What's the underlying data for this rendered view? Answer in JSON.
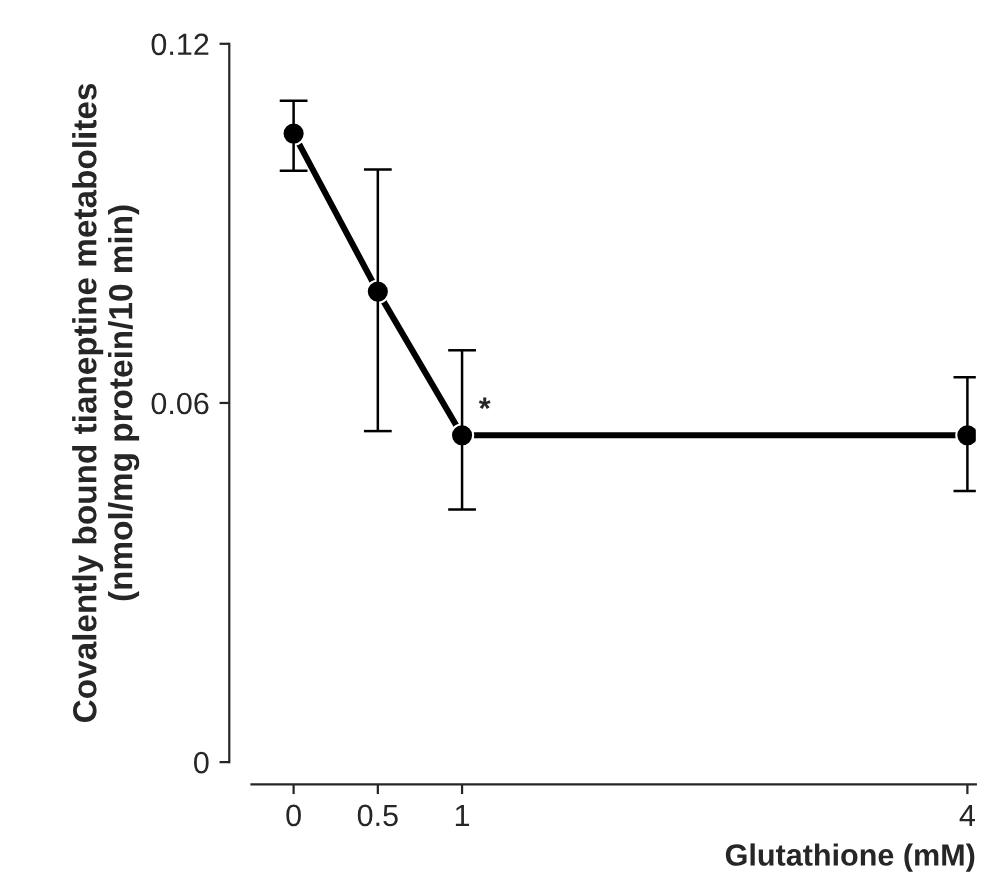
{
  "chart_data": {
    "type": "line",
    "xlabel": "Glutathione (mM)",
    "ylabel": "Covalently bound tianeptine metabolites\n(nmol/mg protein/10 min)",
    "x": [
      0,
      0.5,
      1,
      4
    ],
    "series": [
      {
        "color": "#000000",
        "values": [
          0.105,
          0.0786,
          0.0546,
          0.0546
        ],
        "errors": [
          [
            0.0988,
            0.1105
          ],
          [
            0.0553,
            0.099
          ],
          [
            0.0422,
            0.0688
          ],
          [
            0.0453,
            0.0643
          ]
        ]
      }
    ],
    "xlim": [
      -0.25,
      4.05
    ],
    "xticks": [
      0,
      0.5,
      1,
      4
    ],
    "ylim": [
      0,
      0.12
    ],
    "yticks": [
      0,
      0.06,
      0.12
    ],
    "annotations": [
      {
        "text": "*",
        "x": 1,
        "y": 0.0546
      }
    ],
    "marker": "circle",
    "line_style": "solid",
    "grid": false,
    "legend": false
  }
}
